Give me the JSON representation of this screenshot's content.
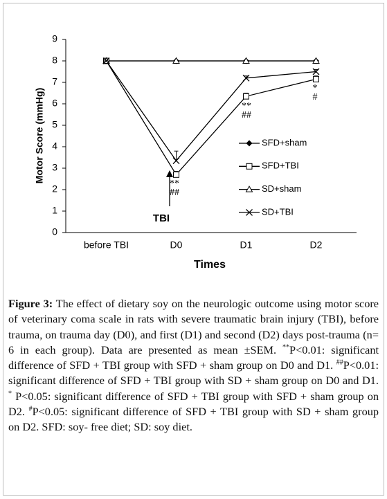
{
  "chart_data": {
    "type": "line",
    "categories": [
      "before TBI",
      "D0",
      "D1",
      "D2"
    ],
    "series": [
      {
        "name": "SFD+sham",
        "color": "#000000",
        "marker": "diamond",
        "values": [
          8,
          8,
          8,
          8
        ]
      },
      {
        "name": "SFD+TBI",
        "color": "#000000",
        "marker": "square",
        "values": [
          8,
          2.7,
          6.35,
          7.15
        ],
        "errors": [
          0,
          0.15,
          0.15,
          0.15
        ]
      },
      {
        "name": "SD+sham",
        "color": "#000000",
        "marker": "triangle",
        "values": [
          8,
          8,
          8,
          8
        ]
      },
      {
        "name": "SD+TBI",
        "color": "#000000",
        "marker": "x",
        "values": [
          8,
          3.35,
          7.2,
          7.5
        ],
        "errors": [
          0,
          0.45,
          0.1,
          0.1
        ]
      }
    ],
    "ylim": [
      0,
      9
    ],
    "yticks": [
      0,
      1,
      2,
      3,
      4,
      5,
      6,
      7,
      8,
      9
    ],
    "ylabel": "Motor Score (mmHg)",
    "xlabel": "Times",
    "legend": "right",
    "annotations": [
      "**",
      "##",
      "**",
      "##",
      "*",
      "#",
      "TBI"
    ]
  },
  "caption": {
    "label": "Figure 3:",
    "parts": [
      {
        "text": " The effect of dietary soy on the neurologic outcome using motor score of veterinary coma scale in rats with severe traumatic brain injury (TBI), before trauma, on trauma day (D0), and first (D1) and second (D2) days post-trauma (n= 6 in each group). Data are presented as mean ±SEM. "
      },
      {
        "text": "**",
        "sup": true
      },
      {
        "text": "P<0.01: significant difference of SFD + TBI group with SFD + sham group on D0 and D1. "
      },
      {
        "text": "##",
        "sup": true
      },
      {
        "text": "P<0.01: significant difference of SFD + TBI group with SD + sham group on D0 and D1. "
      },
      {
        "text": "*",
        "sup": true
      },
      {
        "text": " P<0.05: significant difference of SFD + TBI group with SFD + sham group on D2. "
      },
      {
        "text": "#",
        "sup": true
      },
      {
        "text": "P<0.05: significant difference of SFD + TBI group with SD + sham group on D2. SFD: soy- free diet; SD: soy diet."
      }
    ]
  }
}
